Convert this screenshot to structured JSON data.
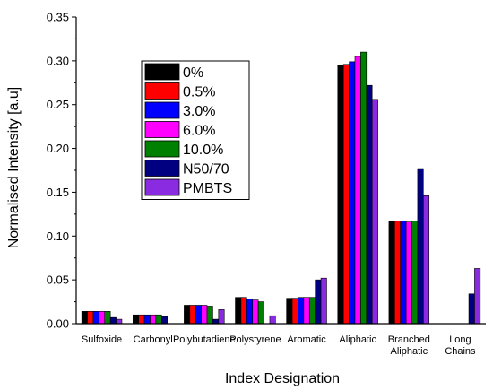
{
  "chart_data": {
    "type": "bar",
    "xlabel": "Index Designation",
    "ylabel": "Normalised Intensity [a.u]",
    "ylim": [
      0,
      0.35
    ],
    "yticks": [
      "0.00",
      "0.05",
      "0.10",
      "0.15",
      "0.20",
      "0.25",
      "0.30",
      "0.35"
    ],
    "categories": [
      [
        "Sulfoxide"
      ],
      [
        "Carbonyl"
      ],
      [
        "Polybutadiene"
      ],
      [
        "Polystyrene"
      ],
      [
        "Aromatic"
      ],
      [
        "Aliphatic"
      ],
      [
        "Branched",
        "Aliphatic"
      ],
      [
        "Long",
        "Chains"
      ]
    ],
    "series": [
      {
        "name": "0%",
        "color": "#000000",
        "values": [
          0.014,
          0.01,
          0.021,
          0.03,
          0.029,
          0.295,
          0.117,
          0.0
        ]
      },
      {
        "name": "0.5%",
        "color": "#ff0000",
        "values": [
          0.014,
          0.01,
          0.021,
          0.03,
          0.029,
          0.296,
          0.117,
          0.0
        ]
      },
      {
        "name": "3.0%",
        "color": "#0000ff",
        "values": [
          0.014,
          0.01,
          0.021,
          0.028,
          0.03,
          0.299,
          0.117,
          0.0
        ]
      },
      {
        "name": "6.0%",
        "color": "#ff00ff",
        "values": [
          0.014,
          0.01,
          0.021,
          0.027,
          0.03,
          0.305,
          0.116,
          0.0
        ]
      },
      {
        "name": "10.0%",
        "color": "#008000",
        "values": [
          0.014,
          0.01,
          0.02,
          0.025,
          0.03,
          0.31,
          0.117,
          0.0
        ]
      },
      {
        "name": "N50/70",
        "color": "#000080",
        "values": [
          0.007,
          0.008,
          0.005,
          0.0,
          0.05,
          0.272,
          0.177,
          0.034
        ]
      },
      {
        "name": "PMBTS",
        "color": "#8a2be2",
        "values": [
          0.005,
          0.0,
          0.016,
          0.009,
          0.052,
          0.256,
          0.146,
          0.063
        ]
      }
    ],
    "legend": "top-left"
  }
}
